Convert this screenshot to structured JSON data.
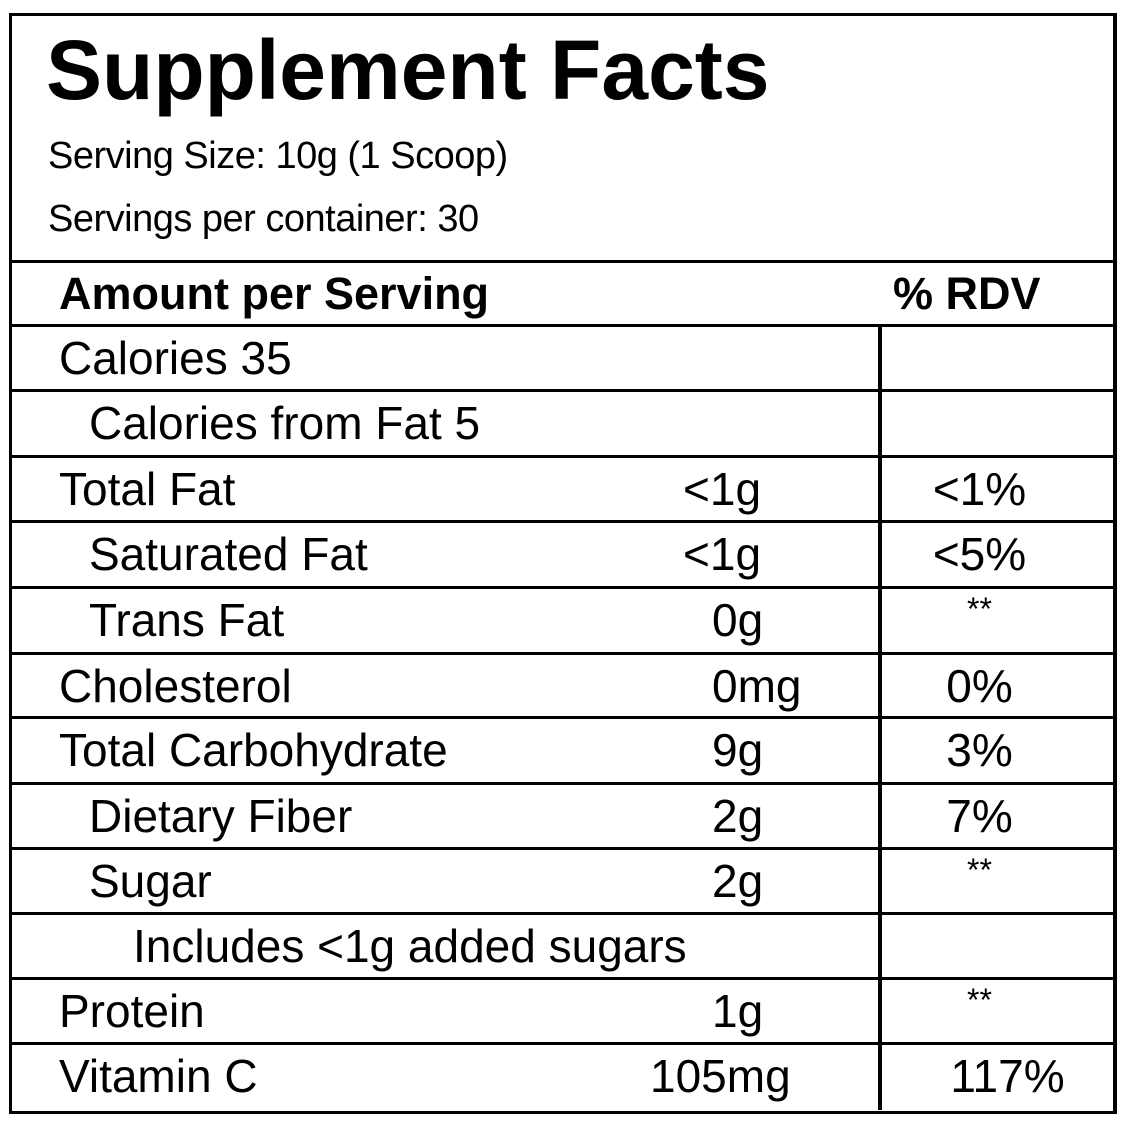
{
  "title": "Supplement Facts",
  "serving_size": "Serving Size: 10g (1 Scoop)",
  "servings_per_container": "Servings per container: 30",
  "header": {
    "amount": "Amount per Serving",
    "rdv": "% RDV"
  },
  "rows": [
    {
      "label": "Calories 35",
      "amount": "",
      "rdv": "",
      "indent": 0
    },
    {
      "label": "Calories from Fat 5",
      "amount": "",
      "rdv": "",
      "indent": 1
    },
    {
      "label": "Total Fat",
      "amount": "<1g",
      "rdv": "<1%",
      "indent": 0
    },
    {
      "label": "Saturated Fat",
      "amount": "<1g",
      "rdv": "<5%",
      "indent": 1
    },
    {
      "label": "Trans Fat",
      "amount": "0g",
      "rdv": "**",
      "indent": 1
    },
    {
      "label": "Cholesterol",
      "amount": "0mg",
      "rdv": "0%",
      "indent": 0
    },
    {
      "label": "Total Carbohydrate",
      "amount": "9g",
      "rdv": "3%",
      "indent": 0
    },
    {
      "label": "Dietary Fiber",
      "amount": "2g",
      "rdv": "7%",
      "indent": 1
    },
    {
      "label": "Sugar",
      "amount": "2g",
      "rdv": "**",
      "indent": 1
    },
    {
      "label": "Includes <1g added sugars",
      "amount": "",
      "rdv": "",
      "indent": 2
    },
    {
      "label": "Protein",
      "amount": "1g",
      "rdv": "**",
      "indent": 0
    },
    {
      "label": "Vitamin C",
      "amount": "105mg",
      "rdv": "117%",
      "indent": 0
    }
  ]
}
